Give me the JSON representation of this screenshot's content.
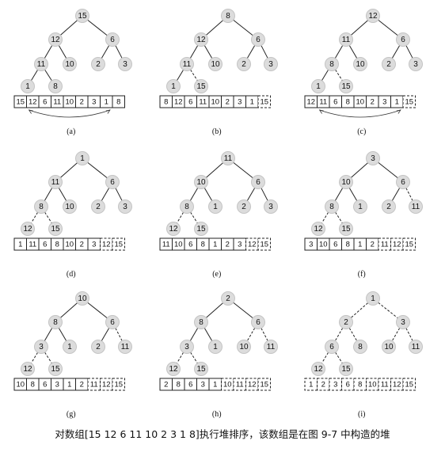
{
  "caption": "对数组[15 12 6 11 10 2 3 1 8]执行堆排序，该数组是在图 9-7 中构造的堆",
  "panels": [
    {
      "label": "(a)",
      "tree": [
        15,
        12,
        6,
        11,
        10,
        2,
        3,
        1,
        8
      ],
      "dashed_edges": [],
      "array": [
        "15",
        "12",
        "6",
        "11",
        "10",
        "2",
        "3",
        "1",
        "8"
      ],
      "sorted_count": 0,
      "swap_arrow": true
    },
    {
      "label": "(b)",
      "tree": [
        8,
        12,
        6,
        11,
        10,
        2,
        3,
        1,
        15
      ],
      "dashed_edges": [
        8
      ],
      "array": [
        "8",
        "12",
        "6",
        "11",
        "10",
        "2",
        "3",
        "1",
        "15"
      ],
      "sorted_count": 1,
      "swap_arrow": false
    },
    {
      "label": "(c)",
      "tree": [
        12,
        11,
        6,
        8,
        10,
        2,
        3,
        1,
        15
      ],
      "dashed_edges": [
        8
      ],
      "array": [
        "12",
        "11",
        "6",
        "8",
        "10",
        "2",
        "3",
        "1",
        "15"
      ],
      "sorted_count": 1,
      "swap_arrow": true
    },
    {
      "label": "(d)",
      "tree": [
        1,
        11,
        6,
        8,
        10,
        2,
        3,
        12,
        15
      ],
      "dashed_edges": [
        7,
        8
      ],
      "array": [
        "1",
        "11",
        "6",
        "8",
        "10",
        "2",
        "3",
        "12",
        "15"
      ],
      "sorted_count": 2,
      "swap_arrow": false
    },
    {
      "label": "(e)",
      "tree": [
        11,
        10,
        6,
        8,
        1,
        2,
        3,
        12,
        15
      ],
      "dashed_edges": [
        7,
        8
      ],
      "array": [
        "11",
        "10",
        "6",
        "8",
        "1",
        "2",
        "3",
        "12",
        "15"
      ],
      "sorted_count": 2,
      "swap_arrow": false
    },
    {
      "label": "(f)",
      "tree": [
        3,
        10,
        6,
        8,
        1,
        2,
        11,
        12,
        15
      ],
      "dashed_edges": [
        6,
        7,
        8
      ],
      "array": [
        "3",
        "10",
        "6",
        "8",
        "1",
        "2",
        "11",
        "12",
        "15"
      ],
      "sorted_count": 3,
      "swap_arrow": false
    },
    {
      "label": "(g)",
      "tree": [
        10,
        8,
        6,
        3,
        1,
        2,
        11,
        12,
        15
      ],
      "dashed_edges": [
        6,
        7,
        8
      ],
      "array": [
        "10",
        "8",
        "6",
        "3",
        "1",
        "2",
        "11",
        "12",
        "15"
      ],
      "sorted_count": 3,
      "swap_arrow": false
    },
    {
      "label": "(h)",
      "tree": [
        2,
        8,
        6,
        3,
        1,
        10,
        11,
        12,
        15
      ],
      "dashed_edges": [
        5,
        6,
        7,
        8
      ],
      "array": [
        "2",
        "8",
        "6",
        "3",
        "1",
        "10",
        "11",
        "12",
        "15"
      ],
      "sorted_count": 4,
      "swap_arrow": false
    },
    {
      "label": "(i)",
      "tree": [
        1,
        2,
        3,
        6,
        8,
        10,
        11,
        12,
        15
      ],
      "dashed_edges": [
        1,
        2,
        3,
        4,
        5,
        6,
        7,
        8
      ],
      "array": [
        "1",
        "2",
        "3",
        "6",
        "8",
        "10",
        "11",
        "12",
        "15"
      ],
      "sorted_count": 9,
      "swap_arrow": false
    }
  ]
}
